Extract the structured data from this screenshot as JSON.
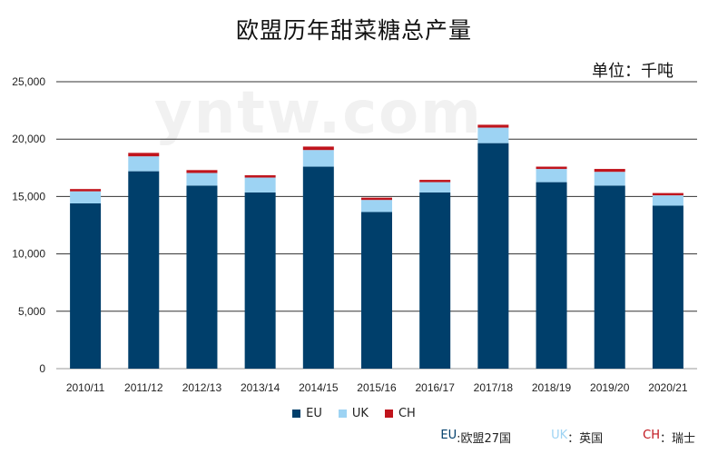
{
  "chart_data": {
    "type": "bar",
    "stacked": true,
    "title": "欧盟历年甜菜糖总产量",
    "unit_label": "单位：千吨",
    "categories": [
      "2010/11",
      "2011/12",
      "2012/13",
      "2013/14",
      "2014/15",
      "2015/16",
      "2016/17",
      "2017/18",
      "2018/19",
      "2019/20",
      "2020/21"
    ],
    "series": [
      {
        "name": "EU",
        "color": "#003f6b",
        "values": [
          14400,
          17200,
          15950,
          15350,
          17600,
          13650,
          15350,
          19650,
          16250,
          15950,
          14200
        ]
      },
      {
        "name": "UK",
        "color": "#9dd3f3",
        "values": [
          1050,
          1300,
          1100,
          1300,
          1450,
          1050,
          900,
          1350,
          1150,
          1200,
          900
        ]
      },
      {
        "name": "CH",
        "color": "#c0141c",
        "values": [
          200,
          300,
          250,
          200,
          300,
          200,
          200,
          250,
          200,
          250,
          200
        ]
      }
    ],
    "yticks": [
      "25,000",
      "20,000",
      "15,000",
      "10,000",
      "5,000",
      "0"
    ],
    "ylim": [
      0,
      25000
    ],
    "grid": true,
    "legend_position": "bottom-center"
  },
  "watermark": "yntw.com",
  "notes": [
    {
      "code": "EU",
      "desc": ":欧盟27国",
      "color": "#003f6b"
    },
    {
      "code": "UK",
      "desc": "：英国",
      "color": "#9dd3f3"
    },
    {
      "code": "CH",
      "desc": "：瑞士",
      "color": "#c0141c"
    }
  ]
}
